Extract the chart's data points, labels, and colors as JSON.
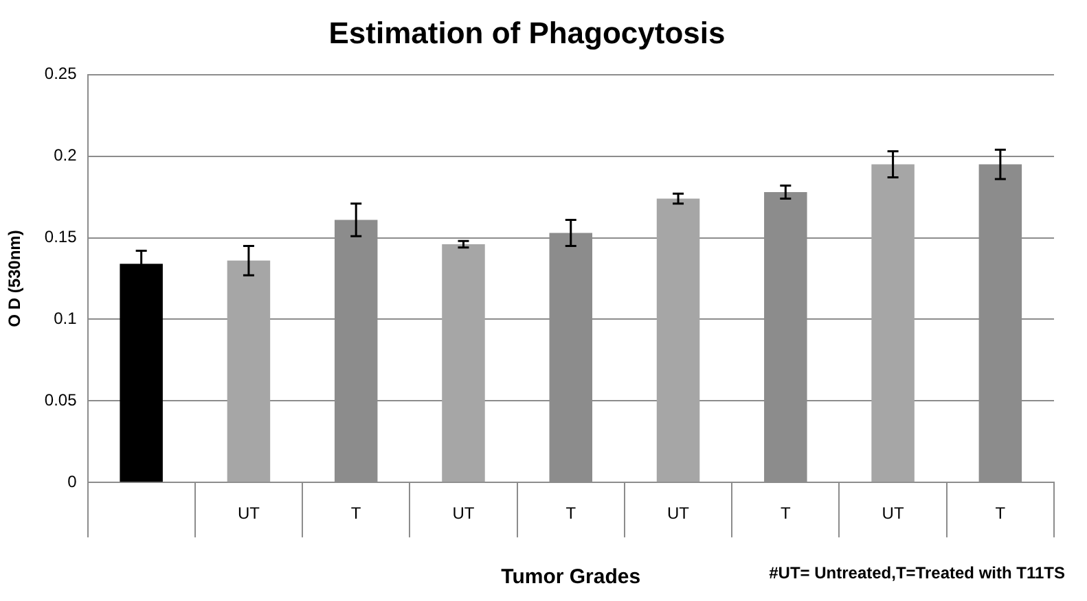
{
  "chart_data": {
    "type": "bar",
    "title": "Estimation of Phagocytosis",
    "ylabel": "O D (530nm)",
    "xlabel": "Tumor Grades",
    "annotations": [
      "#UT= Untreated,T=Treated with T11TS"
    ],
    "categories": [
      null,
      "UT",
      "T",
      "UT",
      "T",
      "UT",
      "T",
      "UT",
      "T"
    ],
    "values": [
      0.134,
      0.136,
      0.161,
      0.146,
      0.153,
      0.174,
      0.178,
      0.195,
      0.195
    ],
    "errors": [
      0.008,
      0.009,
      0.01,
      0.002,
      0.008,
      0.003,
      0.004,
      0.008,
      0.009
    ],
    "colors": [
      "#000000",
      "#a6a6a6",
      "#8c8c8c",
      "#a6a6a6",
      "#8c8c8c",
      "#a6a6a6",
      "#8c8c8c",
      "#a6a6a6",
      "#8c8c8c"
    ],
    "ylim": [
      0,
      0.25
    ],
    "yticks": [
      0,
      0.05,
      0.1,
      0.15,
      0.2,
      0.25
    ],
    "grid": "y",
    "legend": false
  }
}
